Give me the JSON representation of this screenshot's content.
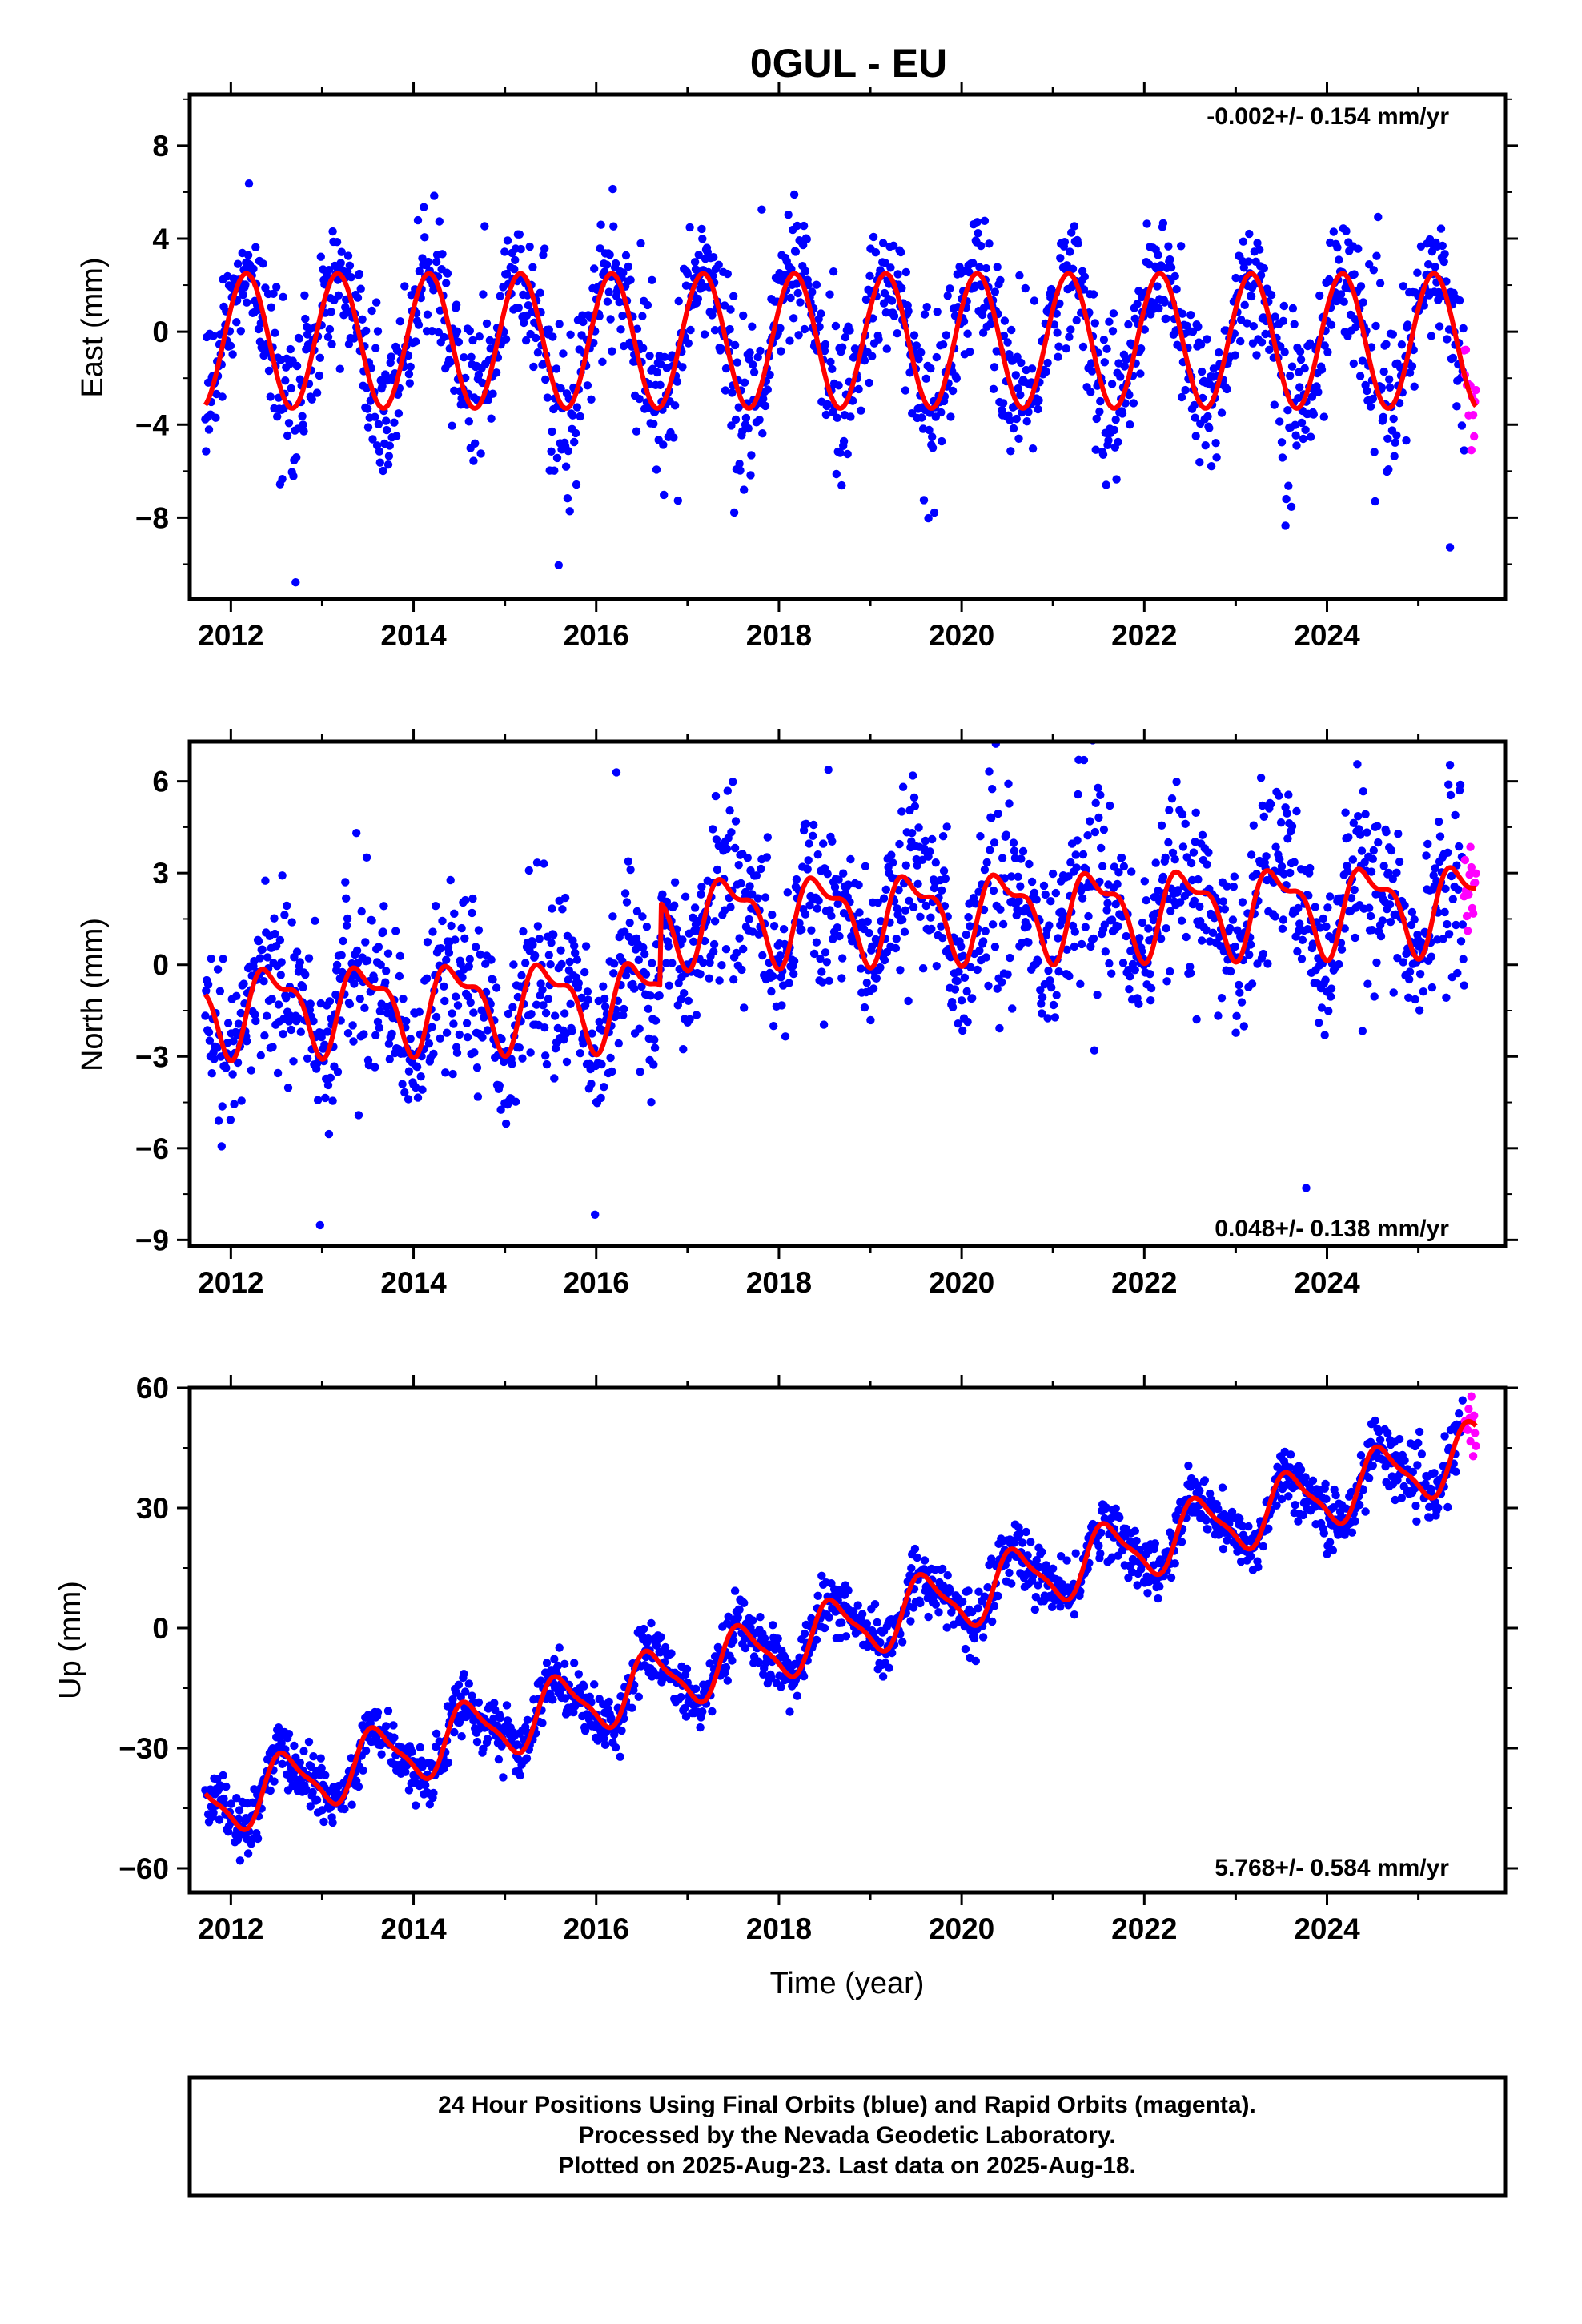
{
  "title": "0GUL - EU",
  "footer": {
    "lines": [
      "24 Hour Positions Using Final Orbits (blue) and Rapid Orbits (magenta).",
      "Processed by the Nevada Geodetic Laboratory.",
      "Plotted on 2025-Aug-23. Last data on 2025-Aug-18."
    ]
  },
  "colors": {
    "final": "#0000ff",
    "rapid": "#ff00ff",
    "model": "#ff0000",
    "frame": "#000000"
  },
  "chart_data": [
    {
      "type": "scatter",
      "panel": "east",
      "title": "",
      "ylabel": "East (mm)",
      "xlabel": "",
      "xlim": [
        2011.55,
        2025.95
      ],
      "ylim": [
        -11.5,
        10.2
      ],
      "yticks": [
        -8,
        -4,
        0,
        4,
        8
      ],
      "yticklabels": [
        "−8",
        "−4",
        "0",
        "4",
        "8"
      ],
      "xticks": [
        2012,
        2014,
        2016,
        2018,
        2020,
        2022,
        2024
      ],
      "xticklabels": [
        "2012",
        "2014",
        "2016",
        "2018",
        "2020",
        "2022",
        "2024"
      ],
      "rate_text": "-0.002+/- 0.154 mm/yr",
      "rate_position": "top-right",
      "data_start": 2011.72,
      "rapid_start": 2025.5,
      "data_end": 2025.63,
      "series": [
        {
          "name": "",
          "role": "final-orbits",
          "color": "#0000ff",
          "x_range": [
            2011.72,
            2025.5
          ]
        },
        {
          "name": "",
          "role": "rapid-orbits",
          "color": "#ff00ff",
          "x_range": [
            2025.5,
            2025.63
          ]
        },
        {
          "name": "",
          "role": "model-fit",
          "color": "#ff0000",
          "amplitude": 2.9,
          "offset": -0.4,
          "trend": -0.002
        }
      ]
    },
    {
      "type": "scatter",
      "panel": "north",
      "title": "",
      "ylabel": "North (mm)",
      "xlabel": "",
      "xlim": [
        2011.55,
        2025.95
      ],
      "ylim": [
        -9.2,
        7.3
      ],
      "yticks": [
        -9,
        -6,
        -3,
        0,
        3,
        6
      ],
      "yticklabels": [
        "−9",
        "−6",
        "−3",
        "0",
        "3",
        "6"
      ],
      "xticks": [
        2012,
        2014,
        2016,
        2018,
        2020,
        2022,
        2024
      ],
      "xticklabels": [
        "2012",
        "2014",
        "2016",
        "2018",
        "2020",
        "2022",
        "2024"
      ],
      "rate_text": "0.048+/- 0.138 mm/yr",
      "rate_position": "bottom-right",
      "step_epoch": 2016.7,
      "step_offset": 2.7,
      "series": [
        {
          "name": "",
          "role": "final-orbits",
          "color": "#0000ff",
          "x_range": [
            2011.72,
            2025.5
          ]
        },
        {
          "name": "",
          "role": "rapid-orbits",
          "color": "#ff00ff",
          "x_range": [
            2025.5,
            2025.63
          ]
        },
        {
          "name": "",
          "role": "model-fit",
          "color": "#ff0000",
          "trend": 0.048
        }
      ]
    },
    {
      "type": "scatter",
      "panel": "up",
      "title": "",
      "ylabel": "Up (mm)",
      "xlabel": "Time (year)",
      "xlim": [
        2011.55,
        2025.95
      ],
      "ylim": [
        -66,
        60
      ],
      "yticks": [
        -60,
        -30,
        0,
        30,
        60
      ],
      "yticklabels": [
        "−60",
        "−30",
        "0",
        "30",
        "60"
      ],
      "xticks": [
        2012,
        2014,
        2016,
        2018,
        2020,
        2022,
        2024
      ],
      "xticklabels": [
        "2012",
        "2014",
        "2016",
        "2018",
        "2020",
        "2022",
        "2024"
      ],
      "rate_text": "5.768+/- 0.584 mm/yr",
      "rate_position": "bottom-right",
      "series": [
        {
          "name": "",
          "role": "final-orbits",
          "color": "#0000ff",
          "x_range": [
            2011.72,
            2025.5
          ]
        },
        {
          "name": "",
          "role": "rapid-orbits",
          "color": "#ff00ff",
          "x_range": [
            2025.5,
            2025.63
          ]
        },
        {
          "name": "",
          "role": "model-fit",
          "color": "#ff0000",
          "trend": 5.768,
          "value_2012": -41,
          "value_2025_5": 45
        }
      ]
    }
  ]
}
